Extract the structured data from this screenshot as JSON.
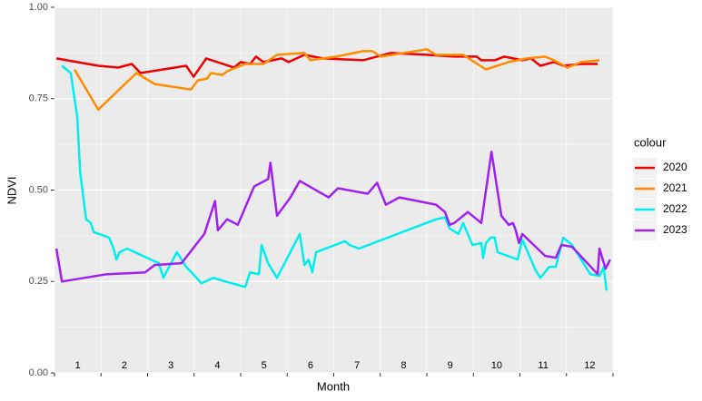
{
  "chart_data": {
    "type": "line",
    "x_label": "Month",
    "y_label": "NDVI",
    "legend_title": "colour",
    "categories": [
      "1",
      "2",
      "3",
      "4",
      "5",
      "6",
      "7",
      "8",
      "9",
      "10",
      "11",
      "12"
    ],
    "xlim": [
      1,
      13
    ],
    "ylim": [
      0,
      1
    ],
    "yticks": [
      {
        "value": 0,
        "label": "0.00"
      },
      {
        "value": 0.25,
        "label": "0.25"
      },
      {
        "value": 0.5,
        "label": "0.50"
      },
      {
        "value": 0.75,
        "label": "0.75"
      },
      {
        "value": 1,
        "label": "1.00"
      }
    ],
    "grid": true,
    "legend_position": "right",
    "series": [
      {
        "name": "2020",
        "color": "#ee0000",
        "x": [
          1.04,
          1.94,
          2.37,
          2.66,
          2.85,
          3.83,
          3.99,
          4.26,
          4.86,
          5.0,
          5.2,
          5.33,
          5.49,
          5.88,
          6.03,
          6.37,
          6.76,
          7.63,
          8.22,
          9.0,
          9.59,
          10.07,
          10.17,
          10.46,
          10.66,
          11.05,
          11.24,
          11.44,
          11.73,
          11.93,
          12.32,
          12.67
        ],
        "values": [
          0.86,
          0.84,
          0.835,
          0.845,
          0.82,
          0.84,
          0.81,
          0.86,
          0.835,
          0.85,
          0.845,
          0.865,
          0.85,
          0.86,
          0.85,
          0.87,
          0.86,
          0.855,
          0.875,
          0.87,
          0.865,
          0.865,
          0.855,
          0.855,
          0.865,
          0.855,
          0.86,
          0.84,
          0.85,
          0.84,
          0.845,
          0.845
        ]
      },
      {
        "name": "2021",
        "color": "#ff8c00",
        "x": [
          1.43,
          1.94,
          2.76,
          3.15,
          3.93,
          4.08,
          4.28,
          4.36,
          4.61,
          4.71,
          5.1,
          5.49,
          5.78,
          6.37,
          6.5,
          7.05,
          7.63,
          7.83,
          8.02,
          9.0,
          9.2,
          9.78,
          10.27,
          10.76,
          11.15,
          11.54,
          11.73,
          12.02,
          12.32,
          12.71
        ],
        "values": [
          0.83,
          0.72,
          0.82,
          0.79,
          0.775,
          0.8,
          0.805,
          0.82,
          0.815,
          0.825,
          0.845,
          0.845,
          0.87,
          0.875,
          0.855,
          0.865,
          0.88,
          0.88,
          0.865,
          0.885,
          0.87,
          0.87,
          0.83,
          0.85,
          0.86,
          0.865,
          0.855,
          0.835,
          0.85,
          0.855
        ]
      },
      {
        "name": "2022",
        "color": "#00eeee",
        "x": [
          1.16,
          1.35,
          1.49,
          1.55,
          1.68,
          1.78,
          1.84,
          2.07,
          2.17,
          2.27,
          2.33,
          2.4,
          2.56,
          3.24,
          3.34,
          3.63,
          3.83,
          4.16,
          4.41,
          4.67,
          5.1,
          5.2,
          5.39,
          5.45,
          5.59,
          5.78,
          6.27,
          6.37,
          6.46,
          6.54,
          6.62,
          7.24,
          7.34,
          7.54,
          9.2,
          9.39,
          9.49,
          9.68,
          9.78,
          9.98,
          10.17,
          10.21,
          10.27,
          10.37,
          10.46,
          10.52,
          10.95,
          11.05,
          11.34,
          11.44,
          11.63,
          11.77,
          11.93,
          12.12,
          12.51,
          12.71,
          12.8,
          12.86
        ],
        "values": [
          0.84,
          0.82,
          0.7,
          0.55,
          0.42,
          0.41,
          0.385,
          0.375,
          0.37,
          0.34,
          0.31,
          0.33,
          0.34,
          0.3,
          0.26,
          0.33,
          0.29,
          0.245,
          0.26,
          0.25,
          0.235,
          0.275,
          0.27,
          0.35,
          0.3,
          0.26,
          0.38,
          0.295,
          0.31,
          0.275,
          0.33,
          0.36,
          0.35,
          0.34,
          0.42,
          0.425,
          0.395,
          0.38,
          0.41,
          0.35,
          0.355,
          0.315,
          0.355,
          0.37,
          0.37,
          0.33,
          0.31,
          0.365,
          0.28,
          0.26,
          0.29,
          0.29,
          0.37,
          0.35,
          0.27,
          0.265,
          0.29,
          0.225
        ]
      },
      {
        "name": "2023",
        "color": "#a020f0",
        "x": [
          1.04,
          1.16,
          2.13,
          2.17,
          2.95,
          3.15,
          3.73,
          4.22,
          4.45,
          4.51,
          4.71,
          4.94,
          5.29,
          5.59,
          5.64,
          5.78,
          6.07,
          6.27,
          6.89,
          7.09,
          7.73,
          7.93,
          8.12,
          8.41,
          9.2,
          9.39,
          9.49,
          9.59,
          9.88,
          10.17,
          10.39,
          10.6,
          10.76,
          10.85,
          10.91,
          10.98,
          11.05,
          11.54,
          11.77,
          11.89,
          12.12,
          12.67,
          12.71,
          12.84,
          12.94
        ],
        "values": [
          0.34,
          0.25,
          0.27,
          0.27,
          0.275,
          0.295,
          0.3,
          0.38,
          0.47,
          0.39,
          0.42,
          0.405,
          0.51,
          0.53,
          0.575,
          0.43,
          0.48,
          0.525,
          0.48,
          0.505,
          0.49,
          0.52,
          0.46,
          0.48,
          0.46,
          0.44,
          0.405,
          0.41,
          0.44,
          0.41,
          0.605,
          0.43,
          0.405,
          0.41,
          0.39,
          0.355,
          0.38,
          0.32,
          0.315,
          0.35,
          0.345,
          0.27,
          0.34,
          0.285,
          0.31
        ]
      }
    ]
  }
}
